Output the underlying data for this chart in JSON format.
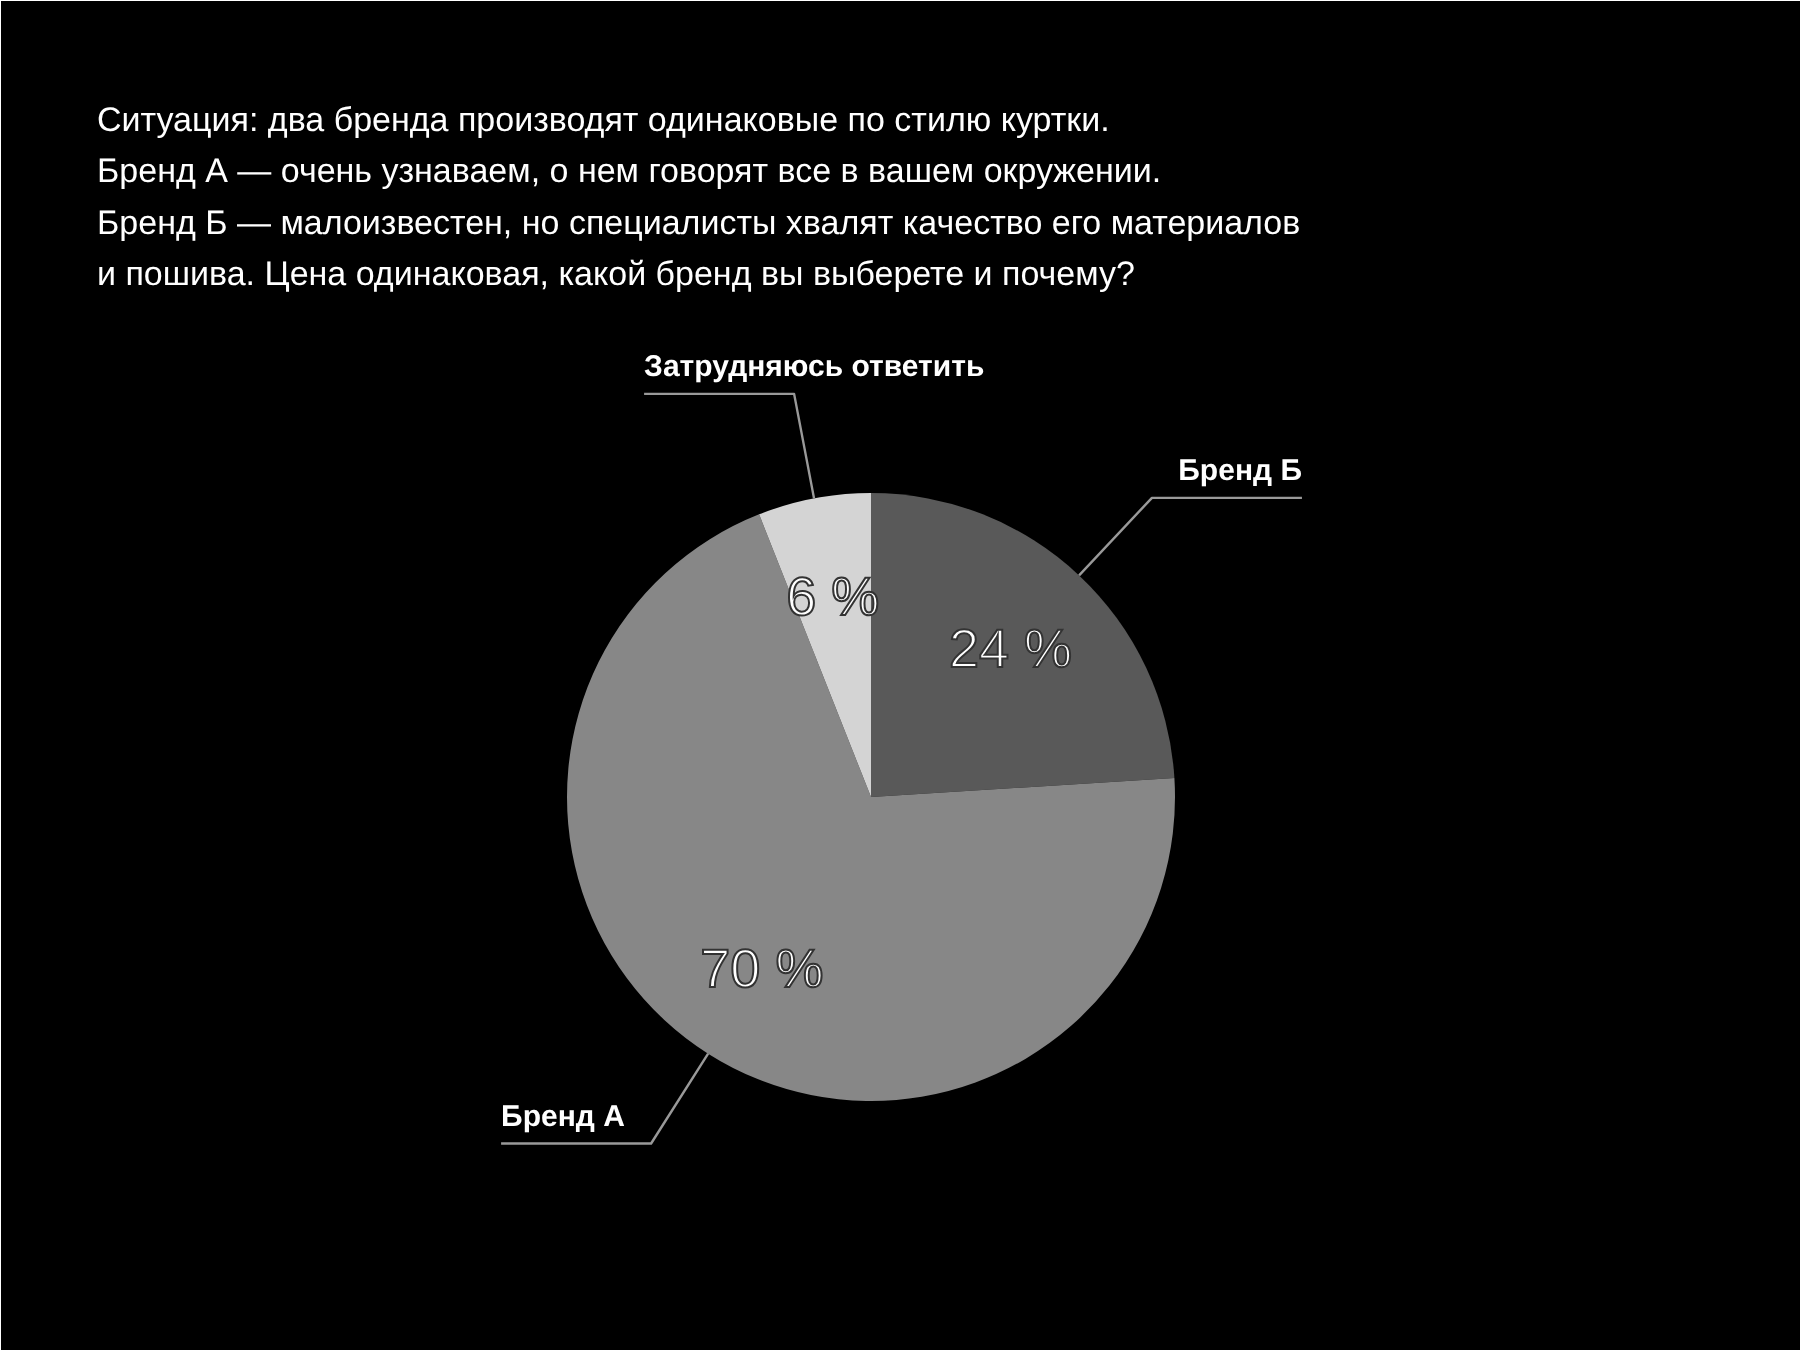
{
  "chart_data": {
    "type": "pie",
    "title": "Ситуация: два бренда производят одинаковые по стилю куртки.\nБренд А — очень узнаваем, о нем говорят все в вашем окружении.\nБренд Б — малоизвестен, но специалисты хвалят качество его материалов\nи пошива. Цена одинаковая, какой бренд вы выберете и почему?",
    "categories": [
      "Бренд Б",
      "Бренд А",
      "Затрудняюсь ответить"
    ],
    "values": [
      24,
      70,
      6
    ],
    "colors": [
      "#595959",
      "#878787",
      "#d4d4d4"
    ],
    "value_labels": [
      "24 %",
      "70 %",
      "6 %"
    ]
  }
}
